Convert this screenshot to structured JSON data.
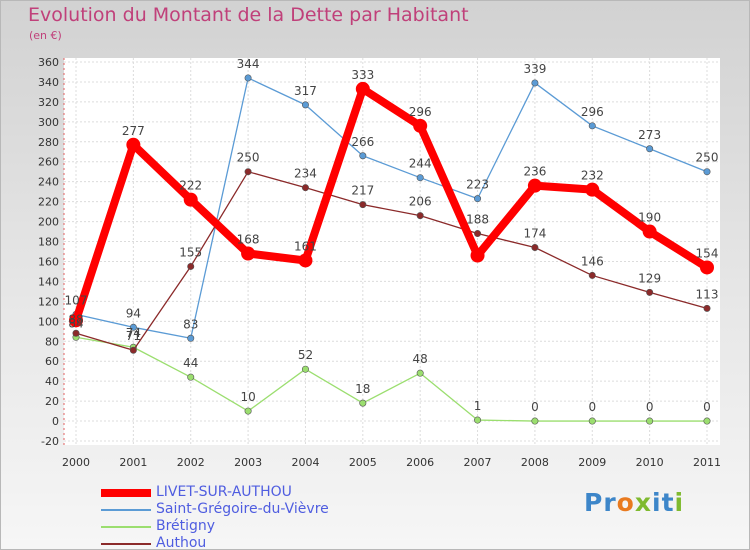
{
  "title": "Evolution du Montant de la Dette par Habitant",
  "subtitle": "(en €)",
  "logo": "Proxiti",
  "chart_data": {
    "type": "line",
    "x": [
      "2000",
      "2001",
      "2002",
      "2003",
      "2004",
      "2005",
      "2006",
      "2007",
      "2008",
      "2009",
      "2010",
      "2011"
    ],
    "ylim": [
      -20,
      360
    ],
    "yticks": [
      -20,
      0,
      20,
      40,
      60,
      80,
      100,
      120,
      140,
      160,
      180,
      200,
      220,
      240,
      260,
      280,
      300,
      320,
      340,
      360
    ],
    "grid": true,
    "legend_position": "bottom-left",
    "series": [
      {
        "name": "LIVET-SUR-AUTHOU",
        "color": "#ff0000",
        "emphasis": true,
        "values": [
          101,
          277,
          222,
          168,
          161,
          333,
          296,
          166,
          236,
          232,
          190,
          154
        ],
        "labels": [
          "",
          "277",
          "222",
          "168",
          "161",
          "333",
          "296",
          "",
          "236",
          "232",
          "190",
          "154"
        ]
      },
      {
        "name": "Saint-Grégoire-du-Vièvre",
        "color": "#5b9bd5",
        "values": [
          107,
          94,
          83,
          344,
          317,
          266,
          244,
          223,
          339,
          296,
          273,
          250
        ],
        "labels": [
          "107",
          "94",
          "83",
          "344",
          "317",
          "266",
          "244",
          "223",
          "339",
          "296",
          "273",
          "250"
        ]
      },
      {
        "name": "Brétigny",
        "color": "#9bde6f",
        "values": [
          84,
          74,
          44,
          10,
          52,
          18,
          48,
          1,
          0,
          0,
          0,
          0
        ],
        "labels": [
          "84",
          "74",
          "44",
          "10",
          "52",
          "18",
          "48",
          "1",
          "0",
          "0",
          "0",
          "0"
        ]
      },
      {
        "name": "Authou",
        "color": "#8b2a2a",
        "values": [
          88,
          71,
          155,
          250,
          234,
          217,
          206,
          188,
          174,
          146,
          129,
          113
        ],
        "labels": [
          "88",
          "71",
          "155",
          "250",
          "234",
          "217",
          "206",
          "188",
          "174",
          "146",
          "129",
          "113"
        ]
      }
    ]
  }
}
